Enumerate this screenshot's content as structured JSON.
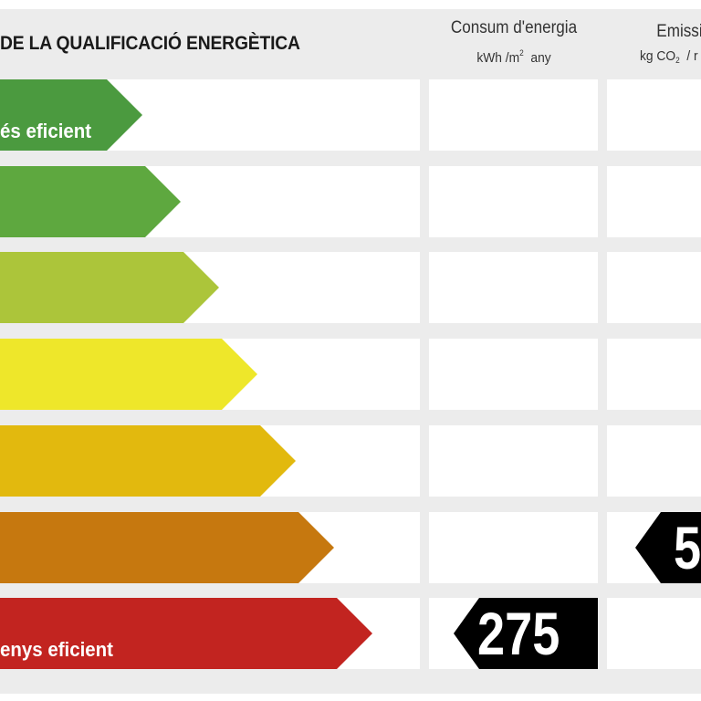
{
  "title": "DE LA QUALIFICACIÓ ENERGÈTICA",
  "columns": {
    "consum": {
      "title": "Consum d'energia",
      "unit_prefix": "kWh /m",
      "unit_sup": "2",
      "unit_suffix": "any"
    },
    "emissions": {
      "title": "Emissio",
      "unit_prefix": "kg CO",
      "unit_sub": "2",
      "unit_suffix": "/ r"
    }
  },
  "bands": [
    {
      "color": "#4b9a3f",
      "label": "és eficient"
    },
    {
      "color": "#5ea83f",
      "label": ""
    },
    {
      "color": "#acc53a",
      "label": ""
    },
    {
      "color": "#eee72a",
      "label": ""
    },
    {
      "color": "#e2b90e",
      "label": ""
    },
    {
      "color": "#c6780f",
      "label": ""
    },
    {
      "color": "#c22420",
      "label": "enys eficient"
    }
  ],
  "consum_value": "275",
  "emissions_value": "5"
}
